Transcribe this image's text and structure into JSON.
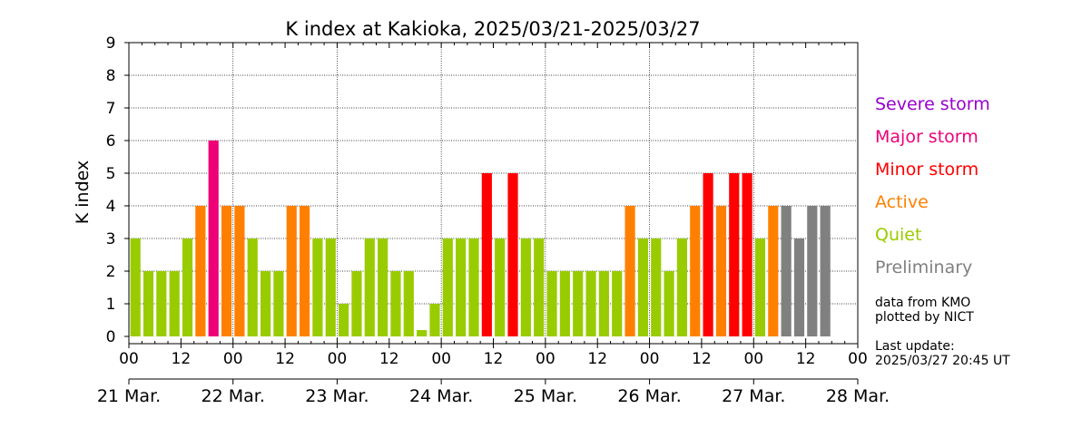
{
  "chart_data": {
    "type": "bar",
    "title": "K index at Kakioka, 2025/03/21-2025/03/27",
    "ylabel": "K index",
    "xlabel": "",
    "ylim": [
      0,
      9
    ],
    "yticks": [
      "0",
      "1",
      "2",
      "3",
      "4",
      "5",
      "6",
      "7",
      "8",
      "9"
    ],
    "hour_ticks": [
      "00",
      "12",
      "00",
      "12",
      "00",
      "12",
      "00",
      "12",
      "00",
      "12",
      "00",
      "12",
      "00",
      "12",
      "00"
    ],
    "date_ticks": [
      "21 Mar.",
      "22 Mar.",
      "23 Mar.",
      "24 Mar.",
      "25 Mar.",
      "26 Mar.",
      "27 Mar.",
      "28 Mar."
    ],
    "interval_hours": 3,
    "grid": true,
    "values": [
      3,
      2,
      2,
      2,
      3,
      4,
      6,
      4,
      4,
      3,
      2,
      2,
      4,
      4,
      3,
      3,
      1,
      2,
      3,
      3,
      2,
      2,
      0,
      1,
      3,
      3,
      3,
      5,
      3,
      5,
      3,
      3,
      2,
      2,
      2,
      2,
      2,
      2,
      4,
      3,
      3,
      2,
      3,
      4,
      5,
      4,
      5,
      5,
      3,
      4,
      4,
      3,
      4,
      4
    ],
    "levels": [
      "quiet",
      "quiet",
      "quiet",
      "quiet",
      "quiet",
      "active",
      "major",
      "active",
      "active",
      "quiet",
      "quiet",
      "quiet",
      "active",
      "active",
      "quiet",
      "quiet",
      "quiet",
      "quiet",
      "quiet",
      "quiet",
      "quiet",
      "quiet",
      "quiet",
      "quiet",
      "quiet",
      "quiet",
      "quiet",
      "minor",
      "quiet",
      "minor",
      "quiet",
      "quiet",
      "quiet",
      "quiet",
      "quiet",
      "quiet",
      "quiet",
      "quiet",
      "active",
      "quiet",
      "quiet",
      "quiet",
      "quiet",
      "active",
      "minor",
      "active",
      "minor",
      "minor",
      "quiet",
      "active",
      "preliminary",
      "preliminary",
      "preliminary",
      "preliminary"
    ]
  },
  "legend": [
    {
      "key": "severe",
      "label": "Severe storm",
      "color": "#9900cc"
    },
    {
      "key": "major",
      "label": "Major storm",
      "color": "#ee0077"
    },
    {
      "key": "minor",
      "label": "Minor storm",
      "color": "#ff0000"
    },
    {
      "key": "active",
      "label": "Active",
      "color": "#ff8000"
    },
    {
      "key": "quiet",
      "label": "Quiet",
      "color": "#99cc00"
    },
    {
      "key": "preliminary",
      "label": "Preliminary",
      "color": "#808080"
    }
  ],
  "notes": {
    "source_line1": "data from KMO",
    "source_line2": "plotted by NICT",
    "update_label": "Last update:",
    "update_time": "2025/03/27 20:45 UT"
  }
}
